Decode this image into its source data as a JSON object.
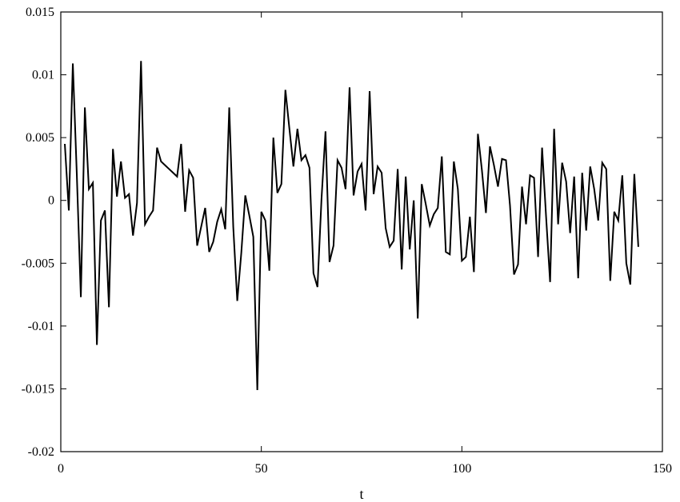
{
  "chart_data": {
    "type": "line",
    "title": "",
    "xlabel": "t",
    "ylabel": "",
    "xlim": [
      0,
      150
    ],
    "ylim": [
      -0.02,
      0.015
    ],
    "xticks": [
      0,
      50,
      100,
      150
    ],
    "xtick_labels": [
      "0",
      "50",
      "100",
      "150"
    ],
    "yticks": [
      -0.02,
      -0.015,
      -0.01,
      -0.005,
      0,
      0.005,
      0.01,
      0.015
    ],
    "ytick_labels": [
      "-0.02",
      "-0.015",
      "-0.01",
      "-0.005",
      "0",
      "0.005",
      "0.01",
      "0.015"
    ],
    "grid": false,
    "line_color": "#000000",
    "series": [
      {
        "x": [
          1,
          2,
          3,
          4,
          5,
          6,
          7,
          8,
          9,
          10,
          11,
          12,
          13,
          14,
          15,
          16,
          17,
          18,
          19,
          20,
          21,
          22,
          23,
          24,
          25,
          26,
          27,
          28,
          29,
          30,
          31,
          32,
          33,
          34,
          35,
          36,
          37,
          38,
          39,
          40,
          41,
          42,
          43,
          44,
          45,
          46,
          47,
          48,
          49,
          50,
          51,
          52,
          53,
          54,
          55,
          56,
          57,
          58,
          59,
          60,
          61,
          62,
          63,
          64,
          65,
          66,
          67,
          68,
          69,
          70,
          71,
          72,
          73,
          74,
          75,
          76,
          77,
          78,
          79,
          80,
          81,
          82,
          83,
          84,
          85,
          86,
          87,
          88,
          89,
          90,
          91,
          92,
          93,
          94,
          95,
          96,
          97,
          98,
          99,
          100,
          101,
          102,
          103,
          104,
          105,
          106,
          107,
          108,
          109,
          110,
          111,
          112,
          113,
          114,
          115,
          116,
          117,
          118,
          119,
          120,
          121,
          122,
          123,
          124,
          125,
          126,
          127,
          128,
          129,
          130,
          131,
          132,
          133,
          134,
          135,
          136,
          137,
          138,
          139,
          140,
          141,
          142,
          143,
          144
        ],
        "values": [
          0.0045,
          -0.0008,
          0.0109,
          0.002,
          -0.0077,
          0.0074,
          0.0009,
          0.0014,
          -0.0115,
          -0.0016,
          -0.0008,
          -0.0085,
          0.0041,
          0.0003,
          0.0031,
          0.0002,
          0.0005,
          -0.0028,
          -0.0002,
          0.0111,
          -0.0019,
          -0.0013,
          -0.0008,
          0.0042,
          0.0031,
          0.0028,
          0.0025,
          0.0022,
          0.0019,
          0.0045,
          -0.0009,
          0.0024,
          0.0018,
          -0.0036,
          -0.0021,
          -0.0006,
          -0.0041,
          -0.0033,
          -0.0017,
          -0.0007,
          -0.0023,
          0.0074,
          -0.0021,
          -0.008,
          -0.0042,
          0.0004,
          -0.0012,
          -0.0029,
          -0.0151,
          -0.0009,
          -0.0016,
          -0.0056,
          0.005,
          0.0006,
          0.0013,
          0.0088,
          0.0057,
          0.0027,
          0.0057,
          0.0032,
          0.0036,
          0.0026,
          -0.0058,
          -0.0069,
          0.0001,
          0.0055,
          -0.0049,
          -0.0036,
          0.0032,
          0.0026,
          0.0009,
          0.009,
          0.0004,
          0.0023,
          0.0029,
          -0.0008,
          0.0087,
          0.0005,
          0.0027,
          0.0022,
          -0.0022,
          -0.0037,
          -0.0032,
          0.0025,
          -0.0055,
          0.0019,
          -0.0039,
          0.0,
          -0.0094,
          0.0013,
          -0.0003,
          -0.002,
          -0.0011,
          -0.0006,
          0.0035,
          -0.0041,
          -0.0043,
          0.0031,
          0.0009,
          -0.0048,
          -0.0045,
          -0.0013,
          -0.0057,
          0.0053,
          0.0024,
          -0.001,
          0.0043,
          0.0028,
          0.0011,
          0.0033,
          0.0032,
          -0.0004,
          -0.0059,
          -0.0051,
          0.0011,
          -0.0019,
          0.002,
          0.0018,
          -0.0045,
          0.0042,
          -0.0013,
          -0.0065,
          0.0057,
          -0.0019,
          0.003,
          0.0015,
          -0.0026,
          0.0019,
          -0.0062,
          0.0022,
          -0.0024,
          0.0027,
          0.0009,
          -0.0016,
          0.003,
          0.0025,
          -0.0064,
          -0.0009,
          -0.0016,
          0.002,
          -0.005,
          -0.0067,
          0.0021,
          -0.0037
        ]
      }
    ]
  }
}
